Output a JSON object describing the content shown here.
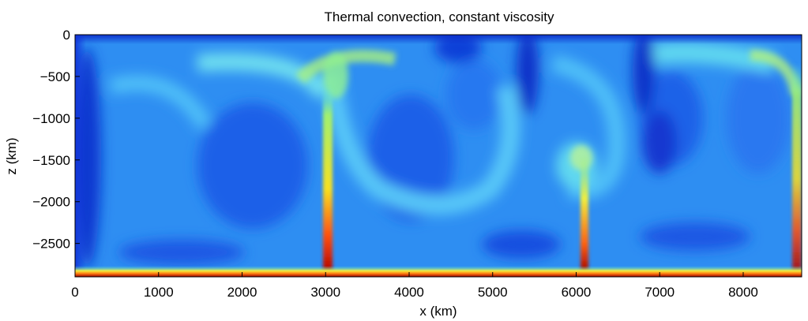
{
  "chart_data": {
    "type": "heatmap",
    "title": "Thermal convection, constant viscosity",
    "xlabel": "x (km)",
    "ylabel": "z (km)",
    "xlim": [
      0,
      8700
    ],
    "ylim": [
      -2900,
      0
    ],
    "x_ticks": [
      0,
      1000,
      2000,
      3000,
      4000,
      5000,
      6000,
      7000,
      8000
    ],
    "x_tick_labels": [
      "0",
      "1000",
      "2000",
      "3000",
      "4000",
      "5000",
      "6000",
      "7000",
      "8000"
    ],
    "y_ticks": [
      0,
      -500,
      -1000,
      -1500,
      -2000,
      -2500
    ],
    "y_tick_labels": [
      "0",
      "−500",
      "−1000",
      "−1500",
      "−2000",
      "−2500"
    ],
    "colormap": "jet",
    "background_color": "#2a8cf0",
    "features": [
      {
        "name": "hot plume",
        "x": 3000,
        "z_base": -2900,
        "z_top": -300,
        "intensity": "high"
      },
      {
        "name": "hot plume",
        "x": 6150,
        "z_base": -2900,
        "z_top": -1500,
        "intensity": "high"
      },
      {
        "name": "hot plume",
        "x": 8650,
        "z_base": -2900,
        "z_top": -200,
        "intensity": "medium"
      },
      {
        "name": "hot bottom boundary layer",
        "z": -2850
      },
      {
        "name": "cold top boundary layer",
        "z": -20
      }
    ]
  }
}
